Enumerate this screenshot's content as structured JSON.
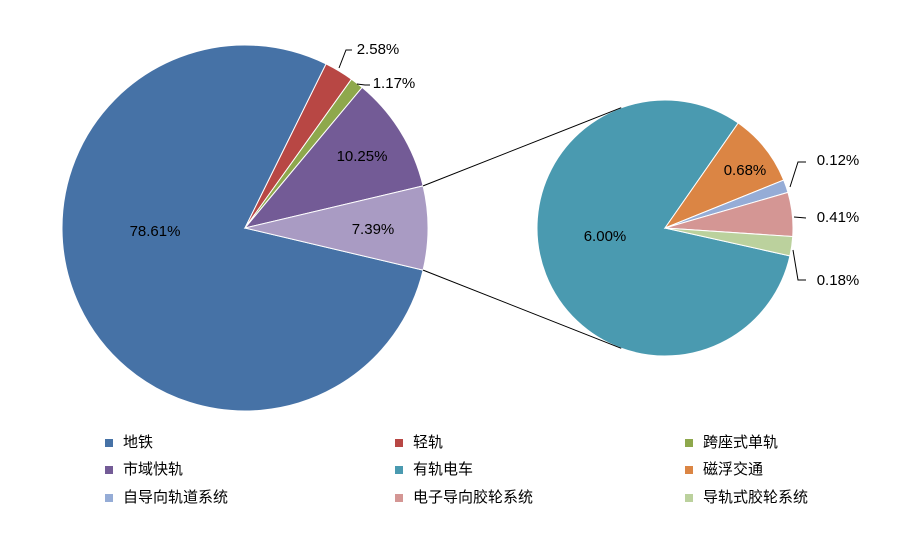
{
  "chart_data": {
    "type": "pie_of_pie",
    "pies": [
      {
        "categories": [
          "地铁",
          "轻轨",
          "跨座式单轨",
          "市域快轨",
          null
        ],
        "values": [
          78.61,
          2.58,
          1.17,
          10.25,
          7.39
        ],
        "value_labels": [
          "78.61%",
          "2.58%",
          "1.17%",
          "10.25%",
          "7.39%"
        ],
        "colors": [
          "#4672a6",
          "#b84744",
          "#8ea84c",
          "#735b96",
          "#a99bc3"
        ]
      },
      {
        "categories": [
          "有轨电车",
          "磁浮交通",
          "自导向轨道系统",
          "电子导向胶轮系统",
          "导轨式胶轮系统"
        ],
        "values": [
          6.0,
          0.68,
          0.12,
          0.41,
          0.18
        ],
        "value_labels": [
          "6.00%",
          "0.68%",
          "0.12%",
          "0.41%",
          "0.18%"
        ],
        "colors": [
          "#4a9ab0",
          "#db8544",
          "#95acd6",
          "#d49694",
          "#bbd19d"
        ]
      }
    ],
    "legend": true
  }
}
